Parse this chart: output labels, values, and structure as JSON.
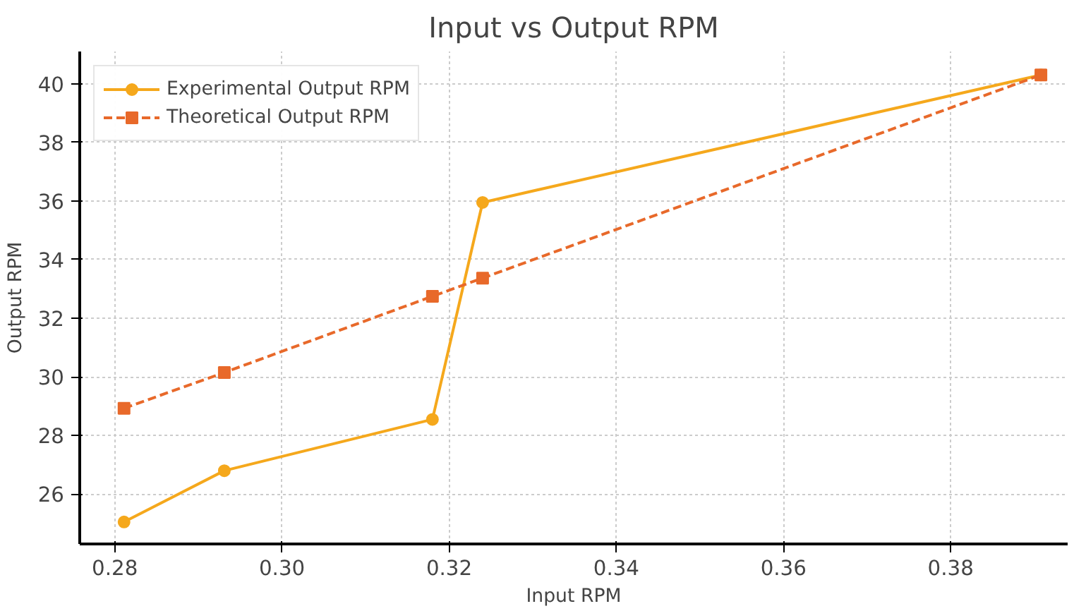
{
  "chart_data": {
    "type": "line",
    "title": "Input vs Output RPM",
    "xlabel": "Input RPM",
    "ylabel": "Output RPM",
    "x": [
      0.2811,
      0.2931,
      0.318,
      0.324,
      0.3908
    ],
    "series": [
      {
        "name": "Experimental Output RPM",
        "color": "#f5a81c",
        "values": [
          25.05,
          26.8,
          28.55,
          35.95,
          40.3
        ],
        "marker": "circle",
        "line_style": "solid"
      },
      {
        "name": "Theoretical Output RPM",
        "color": "#e8692a",
        "values": [
          28.93,
          30.15,
          32.75,
          33.37,
          40.3
        ],
        "marker": "square",
        "line_style": "dashed"
      }
    ],
    "xlim": [
      0.2758,
      0.394
    ],
    "ylim": [
      24.3,
      41.1
    ],
    "xticks": [
      0.28,
      {
        "value": 0.3,
        "label": "0.30"
      },
      0.32,
      0.34,
      0.36,
      0.38
    ],
    "yticks": [
      26,
      28,
      30,
      32,
      34,
      36,
      38,
      40
    ],
    "grid": true,
    "legend": "top left"
  }
}
